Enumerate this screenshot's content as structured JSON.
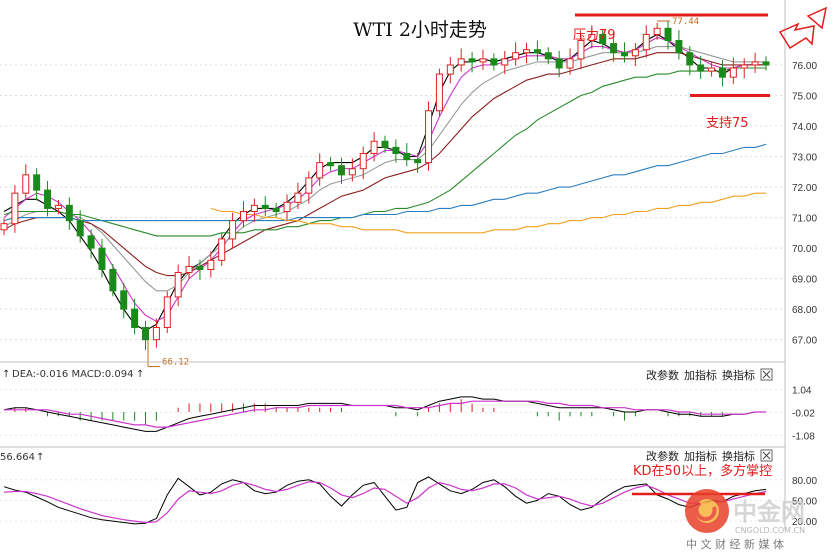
{
  "chart_data": [
    {
      "type": "candlestick",
      "title": "WTI 2小时走势",
      "ylim": [
        66.4,
        77.8
      ],
      "y_ticks": [
        67.0,
        68.0,
        69.0,
        70.0,
        71.0,
        72.0,
        73.0,
        74.0,
        75.0,
        76.0
      ],
      "annotations": {
        "resistance_label": "压力79",
        "support_label": "支持75",
        "support_level": 75.0,
        "high_label": "77.44",
        "high_value": 77.44,
        "low_label": "66.12",
        "low_value": 66.12
      },
      "close_path": [
        70.8,
        71.8,
        72.4,
        71.9,
        71.3,
        71.4,
        70.9,
        70.4,
        70.0,
        69.3,
        68.6,
        68.0,
        67.4,
        67.0,
        67.4,
        68.4,
        69.2,
        69.4,
        69.3,
        69.6,
        70.3,
        70.9,
        71.2,
        71.4,
        71.3,
        71.2,
        71.5,
        71.8,
        72.3,
        72.8,
        72.7,
        72.4,
        72.6,
        73.1,
        73.5,
        73.3,
        73.1,
        72.9,
        72.8,
        74.5,
        75.7,
        76.0,
        76.2,
        76.1,
        76.2,
        76.0,
        76.2,
        76.4,
        76.5,
        76.4,
        76.2,
        75.9,
        76.2,
        76.8,
        77.0,
        76.7,
        76.4,
        76.3,
        76.5,
        77.0,
        77.2,
        76.8,
        76.4,
        76.0,
        75.8,
        75.9,
        75.6,
        75.9,
        76.0,
        76.1,
        76.0
      ],
      "moving_averages": [
        {
          "color": "#000000",
          "values": [
            71.2,
            71.4,
            71.6,
            71.6,
            71.4,
            71.2,
            70.9,
            70.4,
            69.9,
            69.3,
            68.6,
            68.0,
            67.5,
            67.3,
            67.5,
            68.2,
            68.9,
            69.3,
            69.5,
            69.8,
            70.3,
            70.8,
            71.1,
            71.3,
            71.3,
            71.3,
            71.5,
            71.8,
            72.2,
            72.6,
            72.8,
            72.8,
            72.8,
            73.0,
            73.3,
            73.3,
            73.2,
            73.0,
            73.0,
            74.0,
            75.1,
            75.8,
            76.1,
            76.1,
            76.2,
            76.1,
            76.2,
            76.3,
            76.4,
            76.4,
            76.3,
            76.1,
            76.2,
            76.5,
            76.8,
            76.7,
            76.5,
            76.4,
            76.5,
            76.8,
            77.0,
            76.8,
            76.5,
            76.2,
            75.9,
            75.9,
            75.7,
            75.9,
            76.0,
            76.0,
            76.0
          ]
        },
        {
          "color": "#cc33cc",
          "values": [
            71.0,
            71.3,
            71.6,
            71.8,
            71.7,
            71.5,
            71.2,
            70.9,
            70.5,
            70.0,
            69.4,
            68.8,
            68.2,
            67.8,
            67.6,
            67.8,
            68.4,
            69.0,
            69.3,
            69.6,
            70.0,
            70.5,
            70.9,
            71.1,
            71.2,
            71.3,
            71.4,
            71.6,
            71.9,
            72.3,
            72.5,
            72.6,
            72.6,
            72.8,
            73.0,
            73.2,
            73.2,
            73.1,
            73.0,
            73.5,
            74.3,
            75.0,
            75.6,
            75.9,
            76.0,
            76.0,
            76.1,
            76.2,
            76.3,
            76.3,
            76.3,
            76.2,
            76.2,
            76.4,
            76.6,
            76.6,
            76.5,
            76.4,
            76.5,
            76.7,
            76.9,
            76.8,
            76.6,
            76.4,
            76.2,
            76.0,
            75.9,
            75.9,
            76.0,
            76.0,
            76.0
          ]
        },
        {
          "color": "#999999",
          "values": [
            70.7,
            70.9,
            71.1,
            71.2,
            71.2,
            71.2,
            71.1,
            71.0,
            70.8,
            70.5,
            70.1,
            69.7,
            69.3,
            68.9,
            68.6,
            68.6,
            68.8,
            69.2,
            69.5,
            69.8,
            70.1,
            70.4,
            70.7,
            70.9,
            71.0,
            71.1,
            71.2,
            71.4,
            71.6,
            71.9,
            72.1,
            72.2,
            72.3,
            72.4,
            72.6,
            72.8,
            72.9,
            72.9,
            72.9,
            73.2,
            73.7,
            74.2,
            74.7,
            75.1,
            75.4,
            75.6,
            75.8,
            75.9,
            76.0,
            76.1,
            76.1,
            76.1,
            76.1,
            76.2,
            76.3,
            76.4,
            76.4,
            76.4,
            76.4,
            76.5,
            76.6,
            76.6,
            76.6,
            76.5,
            76.4,
            76.3,
            76.2,
            76.1,
            76.1,
            76.1,
            76.1
          ]
        },
        {
          "color": "#8b2020",
          "values": [
            70.6,
            70.8,
            70.9,
            71.0,
            71.0,
            71.0,
            71.0,
            70.9,
            70.8,
            70.6,
            70.3,
            70.0,
            69.7,
            69.4,
            69.2,
            69.1,
            69.1,
            69.2,
            69.4,
            69.6,
            69.8,
            70.0,
            70.2,
            70.4,
            70.6,
            70.7,
            70.8,
            70.9,
            71.1,
            71.3,
            71.5,
            71.7,
            71.8,
            71.9,
            72.1,
            72.3,
            72.4,
            72.5,
            72.6,
            72.8,
            73.1,
            73.5,
            73.9,
            74.3,
            74.6,
            74.9,
            75.1,
            75.3,
            75.5,
            75.6,
            75.7,
            75.7,
            75.8,
            75.9,
            76.0,
            76.1,
            76.2,
            76.2,
            76.2,
            76.3,
            76.4,
            76.4,
            76.4,
            76.3,
            76.2,
            76.1,
            76.0,
            76.0,
            76.0,
            76.0,
            76.0
          ]
        },
        {
          "color": "#2a8a2a",
          "values": [
            71.1,
            71.2,
            71.2,
            71.2,
            71.2,
            71.2,
            71.1,
            71.1,
            71.0,
            70.9,
            70.8,
            70.7,
            70.6,
            70.5,
            70.4,
            70.4,
            70.4,
            70.4,
            70.4,
            70.4,
            70.5,
            70.5,
            70.5,
            70.6,
            70.6,
            70.6,
            70.7,
            70.7,
            70.8,
            70.9,
            70.9,
            71.0,
            71.0,
            71.1,
            71.2,
            71.2,
            71.3,
            71.3,
            71.4,
            71.5,
            71.7,
            71.9,
            72.2,
            72.5,
            72.8,
            73.1,
            73.4,
            73.7,
            73.9,
            74.2,
            74.4,
            74.6,
            74.8,
            75.0,
            75.1,
            75.3,
            75.4,
            75.5,
            75.6,
            75.6,
            75.7,
            75.7,
            75.8,
            75.8,
            75.8,
            75.8,
            75.8,
            75.9,
            75.9,
            75.9,
            75.9
          ]
        },
        {
          "color": "#2a7ec0",
          "values": [
            70.9,
            71.0,
            71.0,
            71.0,
            71.0,
            71.0,
            71.0,
            70.9,
            70.9,
            70.9,
            70.9,
            70.9,
            70.9,
            70.9,
            70.9,
            70.9,
            70.9,
            70.9,
            70.9,
            70.9,
            70.9,
            70.9,
            70.9,
            70.9,
            70.9,
            70.9,
            70.9,
            71.0,
            71.0,
            71.0,
            71.0,
            71.0,
            71.0,
            71.1,
            71.1,
            71.1,
            71.1,
            71.2,
            71.2,
            71.2,
            71.3,
            71.3,
            71.4,
            71.4,
            71.5,
            71.6,
            71.6,
            71.7,
            71.8,
            71.8,
            71.9,
            72.0,
            72.0,
            72.1,
            72.2,
            72.3,
            72.4,
            72.4,
            72.5,
            72.6,
            72.7,
            72.7,
            72.8,
            72.9,
            73.0,
            73.1,
            73.1,
            73.2,
            73.3,
            73.3,
            73.4
          ]
        },
        {
          "color": "#f0a020",
          "values": [
            null,
            null,
            null,
            null,
            null,
            null,
            null,
            null,
            null,
            null,
            null,
            null,
            null,
            null,
            null,
            null,
            null,
            null,
            null,
            71.3,
            71.2,
            71.2,
            71.1,
            71.1,
            71.0,
            71.0,
            70.9,
            70.9,
            70.8,
            70.8,
            70.8,
            70.7,
            70.7,
            70.6,
            70.6,
            70.6,
            70.6,
            70.5,
            70.5,
            70.5,
            70.5,
            70.5,
            70.5,
            70.5,
            70.5,
            70.6,
            70.6,
            70.6,
            70.7,
            70.7,
            70.8,
            70.8,
            70.9,
            70.9,
            71.0,
            71.0,
            71.1,
            71.1,
            71.2,
            71.2,
            71.3,
            71.3,
            71.4,
            71.4,
            71.5,
            71.5,
            71.6,
            71.7,
            71.7,
            71.8,
            71.8
          ]
        }
      ]
    },
    {
      "type": "macd",
      "header_text": "DEA:-0.016  MACD:0.094",
      "ylim": [
        -1.3,
        1.3
      ],
      "y_ticks": [
        1.04,
        -0.02,
        -1.08
      ],
      "tick_labels": [
        "1.04",
        "-0.02",
        "-1.08"
      ],
      "buttons": [
        "改参数",
        "加指标",
        "换指标"
      ],
      "dif": [
        0.1,
        0.2,
        0.2,
        0.1,
        0.0,
        -0.1,
        -0.2,
        -0.3,
        -0.4,
        -0.5,
        -0.6,
        -0.7,
        -0.8,
        -0.9,
        -0.9,
        -0.7,
        -0.5,
        -0.3,
        -0.2,
        -0.1,
        0.0,
        0.1,
        0.2,
        0.3,
        0.3,
        0.3,
        0.3,
        0.3,
        0.4,
        0.4,
        0.4,
        0.4,
        0.3,
        0.3,
        0.3,
        0.3,
        0.2,
        0.2,
        0.1,
        0.3,
        0.5,
        0.6,
        0.7,
        0.7,
        0.6,
        0.6,
        0.5,
        0.5,
        0.5,
        0.4,
        0.3,
        0.2,
        0.2,
        0.2,
        0.2,
        0.2,
        0.1,
        0.0,
        0.0,
        0.1,
        0.1,
        0.0,
        -0.1,
        -0.1,
        -0.2,
        -0.2,
        -0.2,
        -0.1,
        -0.1,
        0.0,
        0.0
      ],
      "dea": [
        0.1,
        0.1,
        0.1,
        0.1,
        0.1,
        0.0,
        -0.1,
        -0.1,
        -0.2,
        -0.3,
        -0.4,
        -0.5,
        -0.6,
        -0.6,
        -0.7,
        -0.7,
        -0.6,
        -0.5,
        -0.4,
        -0.3,
        -0.2,
        -0.1,
        0.0,
        0.1,
        0.1,
        0.2,
        0.2,
        0.2,
        0.3,
        0.3,
        0.3,
        0.3,
        0.3,
        0.3,
        0.3,
        0.3,
        0.3,
        0.2,
        0.2,
        0.2,
        0.3,
        0.4,
        0.4,
        0.5,
        0.5,
        0.5,
        0.5,
        0.5,
        0.5,
        0.5,
        0.4,
        0.4,
        0.3,
        0.3,
        0.3,
        0.2,
        0.2,
        0.2,
        0.1,
        0.1,
        0.1,
        0.1,
        0.0,
        0.0,
        -0.1,
        -0.1,
        -0.1,
        -0.1,
        -0.1,
        0.0,
        0.0
      ],
      "hist": [
        0.0,
        0.2,
        0.2,
        0.0,
        -0.2,
        -0.2,
        -0.2,
        -0.4,
        -0.4,
        -0.4,
        -0.4,
        -0.4,
        -0.4,
        -0.6,
        -0.4,
        0.0,
        0.2,
        0.4,
        0.4,
        0.4,
        0.4,
        0.4,
        0.4,
        0.4,
        0.4,
        0.2,
        0.2,
        0.2,
        0.2,
        0.2,
        0.2,
        0.2,
        0.0,
        0.0,
        0.0,
        0.0,
        -0.2,
        0.0,
        -0.2,
        0.2,
        0.4,
        0.4,
        0.6,
        0.4,
        0.2,
        0.2,
        0.0,
        0.0,
        0.0,
        -0.2,
        -0.2,
        -0.4,
        -0.2,
        -0.2,
        -0.2,
        0.0,
        -0.2,
        -0.4,
        -0.2,
        0.0,
        0.0,
        -0.2,
        -0.2,
        -0.2,
        -0.2,
        -0.2,
        -0.2,
        0.0,
        0.0,
        0.0,
        0.0
      ]
    },
    {
      "type": "kd",
      "header_text": "56.664",
      "annotation": "KD在50以上，多方掌控",
      "ylim": [
        10,
        100
      ],
      "y_ticks": [
        80,
        50,
        20
      ],
      "tick_labels": [
        "80.00",
        "50.00",
        "20.00"
      ],
      "buttons": [
        "改参数",
        "加指标",
        "换指标"
      ],
      "k": [
        70,
        65,
        62,
        55,
        48,
        40,
        35,
        30,
        25,
        22,
        20,
        18,
        16,
        17,
        24,
        58,
        82,
        70,
        58,
        62,
        74,
        80,
        76,
        64,
        60,
        62,
        72,
        78,
        80,
        74,
        56,
        42,
        58,
        72,
        76,
        56,
        36,
        40,
        76,
        84,
        74,
        64,
        60,
        66,
        76,
        80,
        70,
        56,
        46,
        50,
        60,
        56,
        44,
        36,
        40,
        52,
        62,
        70,
        72,
        74,
        58,
        52,
        44,
        40,
        46,
        50,
        48,
        56,
        60,
        64,
        66
      ],
      "d": [
        62,
        63,
        63,
        60,
        56,
        50,
        44,
        38,
        33,
        28,
        25,
        22,
        20,
        18,
        19,
        32,
        52,
        64,
        62,
        60,
        64,
        72,
        76,
        72,
        66,
        63,
        66,
        72,
        77,
        76,
        68,
        58,
        54,
        60,
        68,
        66,
        56,
        46,
        54,
        68,
        76,
        72,
        66,
        64,
        68,
        74,
        74,
        68,
        58,
        52,
        54,
        56,
        52,
        46,
        42,
        46,
        54,
        62,
        68,
        72,
        66,
        58,
        52,
        46,
        46,
        48,
        48,
        52,
        56,
        60,
        63
      ]
    }
  ],
  "watermark": {
    "brand": "中金网",
    "domain": "CNGOLD.COM.CN",
    "tagline": "中 文 财 经 新 媒 体"
  }
}
